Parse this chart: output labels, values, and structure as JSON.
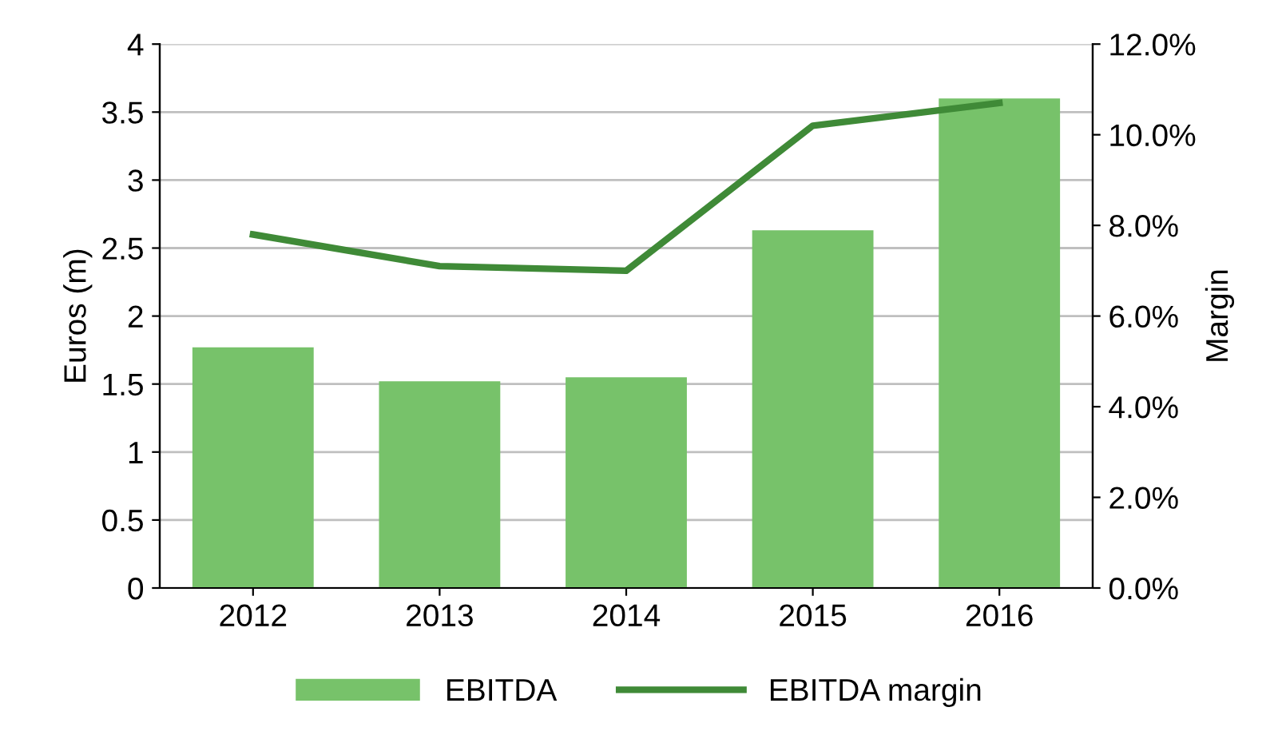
{
  "chart_data": {
    "type": "bar",
    "categories": [
      "2012",
      "2013",
      "2014",
      "2015",
      "2016"
    ],
    "ylabel": "Euros (m)",
    "y2label": "Margin",
    "series": [
      {
        "name": "EBITDA",
        "color": "#77c26a",
        "values": [
          1.77,
          1.52,
          1.55,
          2.63,
          3.6
        ]
      },
      {
        "name": "EBITDA margin",
        "type": "line",
        "axis": "y2",
        "color": "#3f8a37",
        "values": [
          7.8,
          7.1,
          7.0,
          10.2,
          10.7
        ]
      }
    ],
    "ylim": [
      0,
      4
    ],
    "yticks": [
      0,
      0.5,
      1,
      1.5,
      2,
      2.5,
      3,
      3.5,
      4
    ],
    "y2lim": [
      0,
      12
    ],
    "y2ticks": [
      {
        "value": 0,
        "label": "0.0%"
      },
      {
        "value": 2,
        "label": "2.0%"
      },
      {
        "value": 4,
        "label": "4.0%"
      },
      {
        "value": 6,
        "label": "6.0%"
      },
      {
        "value": 8,
        "label": "8.0%"
      },
      {
        "value": 10,
        "label": "10.0%"
      },
      {
        "value": 12,
        "label": "12.0%"
      }
    ],
    "grid": "y",
    "legend": "bottom",
    "marker": "none",
    "line_style": "solid"
  }
}
